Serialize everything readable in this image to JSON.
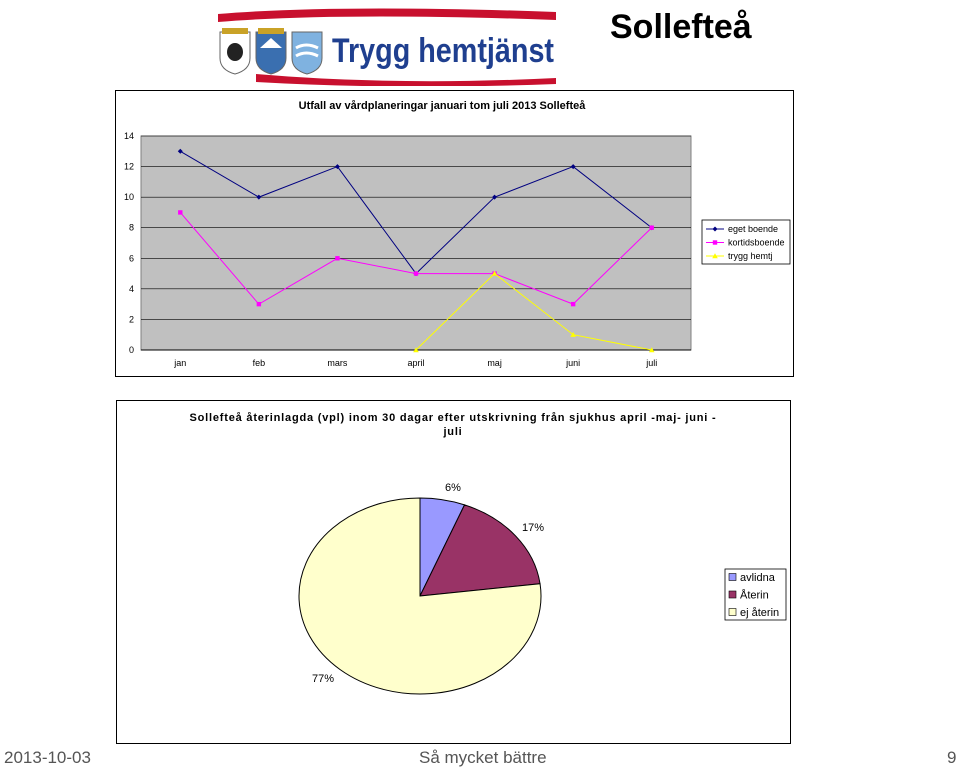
{
  "slide": {
    "title": "Sollefteå",
    "logo_text": "Trygg hemtjänst",
    "footer_date": "2013-10-03",
    "footer_center": "Så mycket bättre",
    "footer_page": "9"
  },
  "colors": {
    "logo_blue": "#1f3f8f",
    "logo_red": "#c8102e",
    "plot_bg": "#c0c0c0"
  },
  "chart_data": [
    {
      "type": "line",
      "title": "Utfall av vårdplaneringar januari tom juli 2013 Sollefteå",
      "categories": [
        "jan",
        "feb",
        "mars",
        "april",
        "maj",
        "juni",
        "juli"
      ],
      "ylim": [
        0,
        14
      ],
      "yticks": [
        0,
        2,
        4,
        6,
        8,
        10,
        12,
        14
      ],
      "grid": true,
      "legend_position": "right",
      "series": [
        {
          "name": "eget boende",
          "color": "#000080",
          "marker": "diamond",
          "values": [
            13,
            10,
            12,
            5,
            10,
            12,
            8
          ]
        },
        {
          "name": "kortidsboende",
          "color": "#ff00ff",
          "marker": "square",
          "values": [
            9,
            3,
            6,
            5,
            5,
            3,
            8
          ]
        },
        {
          "name": "trygg hemtj",
          "color": "#ffff00",
          "marker": "triangle",
          "values": [
            null,
            null,
            null,
            0,
            5,
            1,
            0
          ]
        }
      ]
    },
    {
      "type": "pie",
      "title": "Sollefteå återinlagda (vpl) inom 30 dagar efter utskrivning från sjukhus april -maj- juni - juli",
      "legend_position": "right",
      "slices": [
        {
          "label": "avlidna",
          "value": 6,
          "display": "6%",
          "color": "#9999ff"
        },
        {
          "label": "Återin",
          "value": 17,
          "display": "17%",
          "color": "#993366"
        },
        {
          "label": "ej återin",
          "value": 77,
          "display": "77%",
          "color": "#ffffcc"
        }
      ]
    }
  ]
}
